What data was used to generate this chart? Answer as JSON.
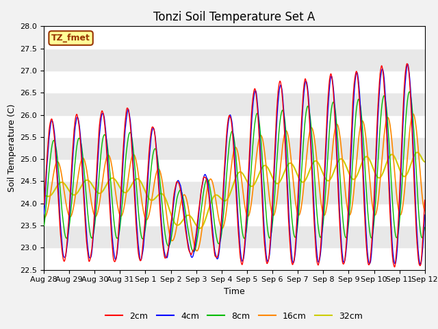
{
  "title": "Tonzi Soil Temperature Set A",
  "xlabel": "Time",
  "ylabel": "Soil Temperature (C)",
  "ylim": [
    22.5,
    28.0
  ],
  "yticks": [
    22.5,
    23.0,
    23.5,
    24.0,
    24.5,
    25.0,
    25.5,
    26.0,
    26.5,
    27.0,
    27.5,
    28.0
  ],
  "xtick_labels": [
    "Aug 28",
    "Aug 29",
    "Aug 30",
    "Aug 31",
    "Sep 1",
    "Sep 2",
    "Sep 3",
    "Sep 4",
    "Sep 5",
    "Sep 6",
    "Sep 7",
    "Sep 8",
    "Sep 9",
    "Sep 10",
    "Sep 11",
    "Sep 12"
  ],
  "annotation_text": "TZ_fmet",
  "annotation_bg": "#FFFF99",
  "annotation_border": "#993300",
  "colors": {
    "2cm": "#FF0000",
    "4cm": "#0000FF",
    "8cm": "#00BB00",
    "16cm": "#FF8800",
    "32cm": "#CCCC00"
  },
  "legend_labels": [
    "2cm",
    "4cm",
    "8cm",
    "16cm",
    "32cm"
  ],
  "bg_color": "#E8E8E8",
  "title_fontsize": 12,
  "axis_fontsize": 9,
  "tick_fontsize": 8
}
